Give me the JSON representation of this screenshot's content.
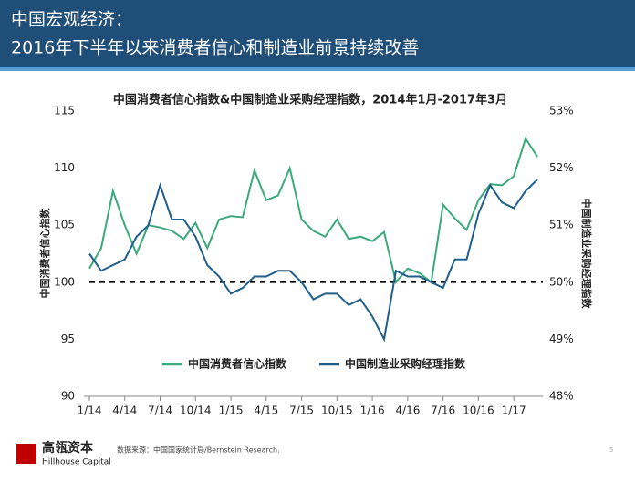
{
  "header": {
    "line1": "中国宏观经济：",
    "line2": "2016年下半年以来消费者信心和制造业前景持续改善"
  },
  "footer": {
    "brand_cn": "高瓴资本",
    "brand_en": "Hillhouse Capital",
    "source": "数据来源：中国国家统计局/Bernstein Research.",
    "page": "5"
  },
  "chart_data": {
    "type": "line",
    "title": "中国消费者信心指数&中国制造业采购经理指数，2014年1月-2017年3月",
    "ylabel": "中国消费者信心指数",
    "y2label": "中国制造业采购经理指数",
    "categories": [
      "1/14",
      null,
      null,
      "4/14",
      null,
      null,
      "7/14",
      null,
      null,
      "10/14",
      null,
      null,
      "1/15",
      null,
      null,
      "4/15",
      null,
      null,
      "7/15",
      null,
      null,
      "10/15",
      null,
      null,
      "1/16",
      null,
      null,
      "4/16",
      null,
      null,
      "7/16",
      null,
      null,
      "10/16",
      null,
      null,
      "1/17",
      null,
      null
    ],
    "series": [
      {
        "name": "中国消费者信心指数",
        "color": "#3aaa7a",
        "axis": "y",
        "values": [
          101.2,
          103.0,
          108.0,
          105.0,
          102.5,
          105.0,
          104.8,
          104.5,
          103.8,
          105.2,
          103.0,
          105.5,
          105.8,
          105.7,
          109.8,
          107.2,
          107.6,
          110.0,
          105.5,
          104.5,
          104.0,
          105.5,
          103.8,
          104.0,
          103.6,
          104.4,
          100.0,
          101.2,
          100.8,
          100.0,
          106.8,
          105.6,
          104.6,
          107.2,
          108.6,
          108.5,
          109.3,
          112.6,
          111.0
        ]
      },
      {
        "name": "中国制造业采购经理指数",
        "color": "#1f5f8b",
        "axis": "y2",
        "values": [
          50.5,
          50.2,
          50.3,
          50.4,
          50.8,
          51.0,
          51.7,
          51.1,
          51.1,
          50.8,
          50.3,
          50.1,
          49.8,
          49.9,
          50.1,
          50.1,
          50.2,
          50.2,
          50.0,
          49.7,
          49.8,
          49.8,
          49.6,
          49.7,
          49.4,
          49.0,
          50.2,
          50.1,
          50.1,
          50.0,
          49.9,
          50.4,
          50.4,
          51.2,
          51.7,
          51.4,
          51.3,
          51.6,
          51.8
        ]
      }
    ],
    "ylim": [
      90,
      115
    ],
    "yticks": [
      90,
      95,
      100,
      105,
      110,
      115
    ],
    "y2lim": [
      48,
      53
    ],
    "y2ticks": [
      {
        "value": 48,
        "label": "48%"
      },
      {
        "value": 49,
        "label": "49%"
      },
      {
        "value": 50,
        "label": "50%"
      },
      {
        "value": 51,
        "label": "51%"
      },
      {
        "value": 52,
        "label": "52%"
      },
      {
        "value": 53,
        "label": "53%"
      }
    ],
    "reference_line": 100,
    "legend": "bottom"
  }
}
